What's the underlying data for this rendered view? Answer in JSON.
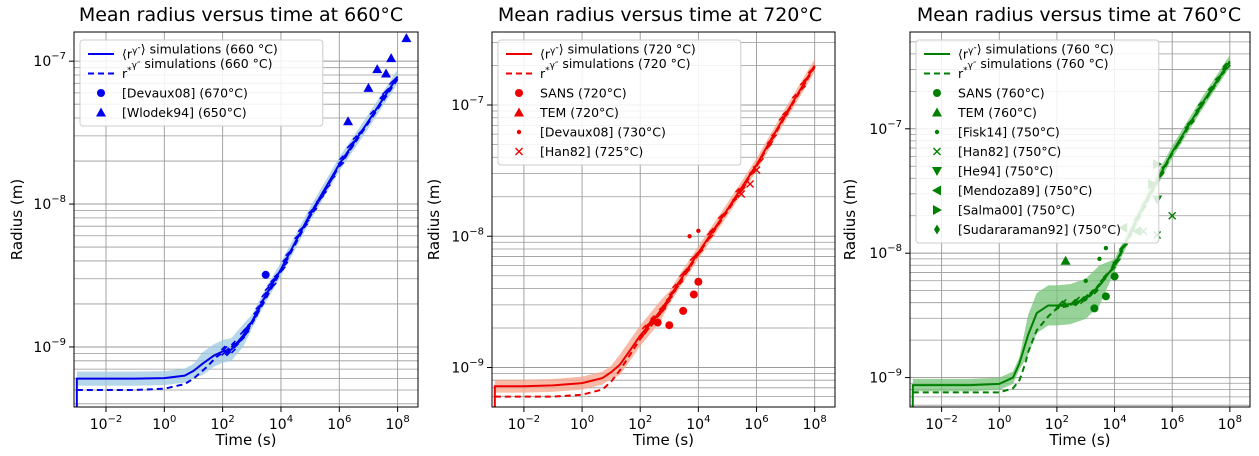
{
  "chart_data": [
    {
      "type": "line",
      "title": "Mean radius versus time at 660°C",
      "xlabel": "Time (s)",
      "ylabel": "Radius (m)",
      "x_scale": "log",
      "y_scale": "log",
      "xlim": [
        0.0008,
        500000000
      ],
      "ylim": [
        3.8e-10,
        1.6e-07
      ],
      "x_ticks": [
        0.01,
        1,
        100,
        10000,
        1000000,
        100000000
      ],
      "x_tick_labels": [
        "10^-2",
        "10^0",
        "10^2",
        "10^4",
        "10^6",
        "10^8"
      ],
      "y_ticks": [
        1e-09,
        1e-08,
        1e-07
      ],
      "y_tick_labels": [
        "10^-9",
        "10^-8",
        "10^-7"
      ],
      "grid": true,
      "legend_position": "top-left",
      "color": "#0000ee",
      "band_color": "#9ecae1",
      "series": [
        {
          "name": "⟨r^γ''⟩ simulations (660 °C)",
          "style": "solid",
          "x": [
            0.001,
            0.001,
            0.01,
            0.1,
            1,
            5,
            10,
            20,
            50,
            100,
            200,
            500,
            1000,
            3000,
            10000,
            100000,
            1000000,
            10000000,
            100000000
          ],
          "y": [
            3.8e-10,
            6e-10,
            6e-10,
            6e-10,
            6.05e-10,
            6.3e-10,
            6.8e-10,
            7.6e-10,
            8.7e-10,
            9.3e-10,
            9.6e-10,
            1.2e-09,
            1.5e-09,
            2.3e-09,
            3.5e-09,
            8.5e-09,
            1.9e-08,
            3.8e-08,
            7.8e-08
          ]
        },
        {
          "name": "r*^γ'' simulations (660 °C)",
          "style": "dashed",
          "x": [
            0.001,
            0.1,
            1,
            5,
            10,
            30,
            60,
            100,
            200,
            500,
            1000,
            10000,
            100000,
            1000000,
            10000000,
            100000000
          ],
          "y": [
            5e-10,
            5e-10,
            5.1e-10,
            5.5e-10,
            6e-10,
            7.3e-10,
            8.5e-10,
            9.1e-10,
            9.5e-10,
            1.15e-09,
            1.45e-09,
            3.4e-09,
            8.2e-09,
            1.85e-08,
            3.7e-08,
            7.5e-08
          ]
        },
        {
          "name": "[Devaux08] (670°C)",
          "marker": "circle",
          "x": [
            3000
          ],
          "y": [
            3.2e-09
          ]
        },
        {
          "name": "[Wlodek94] (650°C)",
          "marker": "triangle-up",
          "x": [
            2000000,
            10000000,
            20000000,
            40000000,
            60000000,
            200000000
          ],
          "y": [
            3.8e-08,
            6.5e-08,
            8.8e-08,
            8.2e-08,
            1.05e-07,
            1.45e-07
          ]
        }
      ]
    },
    {
      "type": "line",
      "title": "Mean radius versus time at 720°C",
      "xlabel": "Time (s)",
      "ylabel": "Radius (m)",
      "x_scale": "log",
      "y_scale": "log",
      "xlim": [
        0.0008,
        500000000
      ],
      "ylim": [
        5e-10,
        3.6e-07
      ],
      "x_ticks": [
        0.01,
        1,
        100,
        10000,
        1000000,
        100000000
      ],
      "x_tick_labels": [
        "10^-2",
        "10^0",
        "10^2",
        "10^4",
        "10^6",
        "10^8"
      ],
      "y_ticks": [
        1e-09,
        1e-08,
        1e-07
      ],
      "y_tick_labels": [
        "10^-9",
        "10^-8",
        "10^-7"
      ],
      "grid": true,
      "legend_position": "top-left",
      "color": "#ee0000",
      "band_color": "#f7a48a",
      "series": [
        {
          "name": "⟨r^γ''⟩ simulations (720 °C)",
          "style": "solid",
          "x": [
            0.001,
            0.001,
            0.01,
            0.1,
            1,
            5,
            10,
            20,
            50,
            100,
            200,
            500,
            1000,
            3000,
            10000,
            100000,
            1000000,
            10000000,
            100000000
          ],
          "y": [
            5e-10,
            7.2e-10,
            7.2e-10,
            7.3e-10,
            7.6e-10,
            8.3e-10,
            9.2e-10,
            1.05e-09,
            1.4e-09,
            1.75e-09,
            2.1e-09,
            2.7e-09,
            3.4e-09,
            5e-09,
            7.5e-09,
            1.6e-08,
            3.5e-08,
            8.5e-08,
            2e-07
          ]
        },
        {
          "name": "r*^γ'' simulations (720 °C)",
          "style": "dashed",
          "x": [
            0.001,
            0.1,
            1,
            5,
            10,
            20,
            50,
            100,
            200,
            500,
            1000,
            10000,
            100000,
            1000000,
            10000000,
            100000000
          ],
          "y": [
            6e-10,
            6e-10,
            6.2e-10,
            6.8e-10,
            7.8e-10,
            9.5e-10,
            1.3e-09,
            1.65e-09,
            2e-09,
            2.6e-09,
            3.3e-09,
            7.3e-09,
            1.55e-08,
            3.4e-08,
            8.3e-08,
            1.95e-07
          ]
        },
        {
          "name": "SANS (720°C)",
          "marker": "circle",
          "x": [
            400,
            1000,
            3000,
            7000,
            10000
          ],
          "y": [
            2.2e-09,
            2.1e-09,
            2.7e-09,
            3.6e-09,
            4.5e-09
          ]
        },
        {
          "name": "TEM (720°C)",
          "marker": "triangle-up",
          "x": [],
          "y": []
        },
        {
          "name": "[Devaux08] (730°C)",
          "marker": "point",
          "x": [
            5000,
            10000
          ],
          "y": [
            1e-08,
            1.1e-08
          ]
        },
        {
          "name": "[Han82] (725°C)",
          "marker": "x",
          "x": [
            300000,
            600000,
            1000000
          ],
          "y": [
            2.1e-08,
            2.5e-08,
            3.2e-08
          ]
        }
      ]
    },
    {
      "type": "line",
      "title": "Mean radius versus time at 760°C",
      "xlabel": "Time (s)",
      "ylabel": "Radius (m)",
      "x_scale": "log",
      "y_scale": "log",
      "xlim": [
        0.0008,
        500000000
      ],
      "ylim": [
        5.8e-10,
        6e-07
      ],
      "x_ticks": [
        0.01,
        1,
        100,
        10000,
        1000000,
        100000000
      ],
      "x_tick_labels": [
        "10^-2",
        "10^0",
        "10^2",
        "10^4",
        "10^6",
        "10^8"
      ],
      "y_ticks": [
        1e-09,
        1e-08,
        1e-07
      ],
      "y_tick_labels": [
        "10^-9",
        "10^-8",
        "10^-7"
      ],
      "grid": true,
      "legend_position": "top-left",
      "color": "#008000",
      "band_color": "#74c476",
      "series": [
        {
          "name": "⟨r^γ''⟩ simulations (760 °C)",
          "style": "solid",
          "x": [
            0.001,
            0.001,
            0.01,
            0.1,
            1,
            3,
            5,
            10,
            20,
            50,
            100,
            300,
            1000,
            3000,
            10000,
            100000,
            1000000,
            10000000,
            100000000
          ],
          "y": [
            5.8e-10,
            8.7e-10,
            8.7e-10,
            8.7e-10,
            8.9e-10,
            1e-09,
            1.3e-09,
            2.2e-09,
            3.3e-09,
            3.8e-09,
            3.8e-09,
            3.9e-09,
            4.3e-09,
            5.5e-09,
            8e-09,
            2.4e-08,
            6.5e-08,
            1.55e-07,
            3.5e-07
          ]
        },
        {
          "name": "r*^γ'' simulations (760 °C)",
          "style": "dashed",
          "x": [
            0.001,
            1,
            3,
            5,
            8,
            10,
            20,
            50,
            100,
            300,
            1000,
            10000,
            100000,
            1000000,
            10000000,
            100000000
          ],
          "y": [
            7.6e-10,
            7.6e-10,
            8.2e-10,
            9.5e-10,
            1.3e-09,
            1.6e-09,
            2.4e-09,
            3.1e-09,
            3.6e-09,
            3.8e-09,
            4.2e-09,
            7.8e-09,
            2.3e-08,
            6.3e-08,
            1.5e-07,
            3.4e-07
          ]
        },
        {
          "name": "SANS (760°C)",
          "marker": "circle",
          "x": [
            2000,
            5000,
            10000
          ],
          "y": [
            3.6e-09,
            4.5e-09,
            6.5e-09
          ]
        },
        {
          "name": "TEM (760°C)",
          "marker": "triangle-up",
          "x": [
            200
          ],
          "y": [
            8.7e-09
          ]
        },
        {
          "name": "[Fisk14] (750°C)",
          "marker": "point",
          "x": [
            1000,
            3000,
            5000
          ],
          "y": [
            6e-09,
            9e-09,
            1.1e-08
          ]
        },
        {
          "name": "[Han82] (750°C)",
          "marker": "x",
          "x": [
            100000,
            300000,
            1000000
          ],
          "y": [
            1.5e-08,
            1.4e-08,
            2e-08
          ]
        },
        {
          "name": "[He94] (750°C)",
          "marker": "triangle-down",
          "x": [
            300000
          ],
          "y": [
            2.7e-08
          ]
        },
        {
          "name": "[Mendoza89] (750°C)",
          "marker": "triangle-left",
          "x": [
            20000,
            60000
          ],
          "y": [
            1.6e-08,
            1.5e-08
          ]
        },
        {
          "name": "[Salma00] (750°C)",
          "marker": "triangle-right",
          "x": [
            200000,
            300000
          ],
          "y": [
            3.6e-08,
            5.2e-08
          ]
        },
        {
          "name": "[Sudararaman92] (750°C)",
          "marker": "diamond",
          "x": [],
          "y": []
        }
      ]
    }
  ]
}
